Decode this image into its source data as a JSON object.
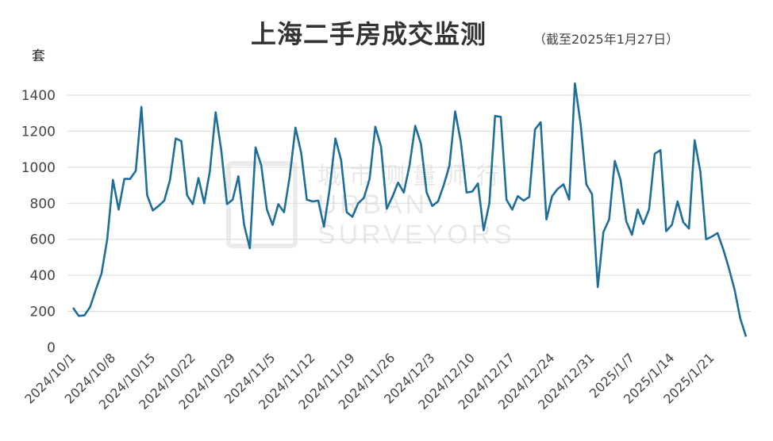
{
  "title": "上海二手房成交监测",
  "subtitle": "（截至2025年1月27日）",
  "y_unit": "套",
  "watermark": {
    "cn": "城市测量师行",
    "en_line1": "URBAN",
    "en_line2": "SURVEYORS"
  },
  "colors": {
    "line": "#1f6e97",
    "grid": "#d9d9d9",
    "text": "#444444"
  },
  "chart_data": {
    "type": "line",
    "title": "上海二手房成交监测",
    "subtitle": "（截至2025年1月27日）",
    "ylabel": "套",
    "ylim": [
      0,
      1400
    ],
    "yticks": [
      0,
      200,
      400,
      600,
      800,
      1000,
      1200,
      1400
    ],
    "grid": true,
    "start_date": "2024-10-01",
    "xtick_labels": [
      "2024/10/1",
      "2024/10/8",
      "2024/10/15",
      "2024/10/22",
      "2024/10/29",
      "2024/11/5",
      "2024/11/12",
      "2024/11/19",
      "2024/11/26",
      "2024/12/3",
      "2024/12/10",
      "2024/12/17",
      "2024/12/24",
      "2024/12/31",
      "2025/1/7",
      "2025/1/14",
      "2025/1/21"
    ],
    "series": [
      {
        "values": [
          220,
          175,
          178,
          225,
          320,
          410,
          600,
          930,
          765,
          935,
          935,
          980,
          1335,
          845,
          760,
          785,
          815,
          930,
          1160,
          1145,
          845,
          795,
          940,
          800,
          980,
          1305,
          1095,
          795,
          820,
          950,
          680,
          550,
          1110,
          1010,
          765,
          680,
          795,
          750,
          950,
          1220,
          1080,
          820,
          810,
          815,
          670,
          880,
          1160,
          1040,
          750,
          725,
          800,
          830,
          935,
          1225,
          1115,
          770,
          835,
          915,
          860,
          1010,
          1230,
          1130,
          860,
          785,
          810,
          900,
          1010,
          1310,
          1140,
          860,
          865,
          910,
          650,
          800,
          1285,
          1280,
          820,
          765,
          840,
          815,
          835,
          1210,
          1250,
          710,
          840,
          880,
          905,
          820,
          1465,
          1240,
          905,
          850,
          335,
          640,
          710,
          1035,
          930,
          700,
          625,
          765,
          685,
          765,
          1075,
          1095,
          645,
          680,
          810,
          695,
          660,
          1150,
          975,
          600,
          615,
          635,
          545,
          440,
          320,
          160,
          60
        ]
      }
    ]
  }
}
